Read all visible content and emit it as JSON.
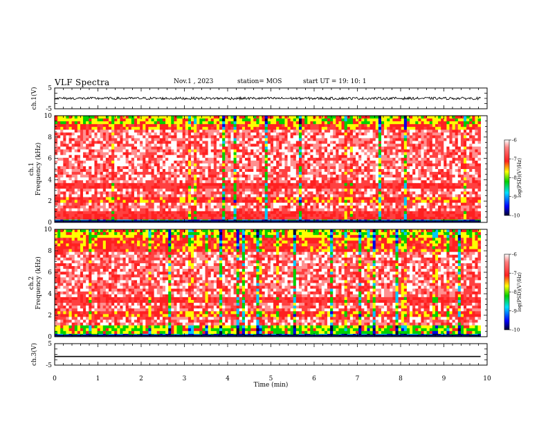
{
  "header": {
    "title": "VLF Spectra",
    "date": "Nov.1 , 2023",
    "station": "station= MOS",
    "start": "start UT = 19: 10: 1"
  },
  "chart_data": [
    {
      "type": "line",
      "panel": "ch1-waveform",
      "ylabel": "ch.1(V)",
      "ylim": [
        -5,
        5
      ],
      "yticks": [
        "5",
        "-5"
      ],
      "xlim": [
        0,
        9.85
      ],
      "series": [
        {
          "values_level": 0.0,
          "noise_amplitude": 0.6
        }
      ]
    },
    {
      "type": "heatmap",
      "panel": "ch1-spectrogram",
      "ylabel": "ch.1\nFrequency (kHz)",
      "ylim": [
        0,
        10
      ],
      "yticks": [
        "0",
        "2",
        "4",
        "6",
        "8",
        "10"
      ],
      "xlim": [
        0,
        9.85
      ],
      "colorbar": {
        "label": "log(PSD)(V²/Hz)",
        "range": [
          -10,
          -6
        ],
        "ticks": [
          "-6",
          "-7",
          "-8",
          "-9",
          "-10"
        ]
      }
    },
    {
      "type": "heatmap",
      "panel": "ch2-spectrogram",
      "ylabel": "ch.2\nFrequency (kHz)",
      "ylim": [
        0,
        10
      ],
      "yticks": [
        "0",
        "2",
        "4",
        "6",
        "8",
        "10"
      ],
      "xlim": [
        0,
        9.85
      ],
      "colorbar": {
        "label": "log(PSD)(V²/Hz)",
        "range": [
          -10,
          -6
        ],
        "ticks": [
          "-6",
          "-7",
          "-8",
          "-9",
          "-10"
        ]
      }
    },
    {
      "type": "line",
      "panel": "ch3-waveform",
      "ylabel": "ch.3(V)",
      "ylim": [
        -5,
        5
      ],
      "yticks": [
        "5",
        "-5"
      ],
      "xlim": [
        0,
        9.85
      ],
      "series": [
        {
          "values_level": -1.0,
          "noise_amplitude": 0.0
        }
      ]
    }
  ],
  "xaxis": {
    "label": "Time (min)",
    "range": [
      0,
      10
    ],
    "ticks": [
      "0",
      "1",
      "2",
      "3",
      "4",
      "5",
      "6",
      "7",
      "8",
      "9",
      "10"
    ]
  },
  "colors": {
    "axis": "#000000",
    "red": "#ff2020",
    "yellow": "#ffff00",
    "green": "#00d000",
    "cyan": "#00e0ff",
    "blue": "#0000e0"
  }
}
